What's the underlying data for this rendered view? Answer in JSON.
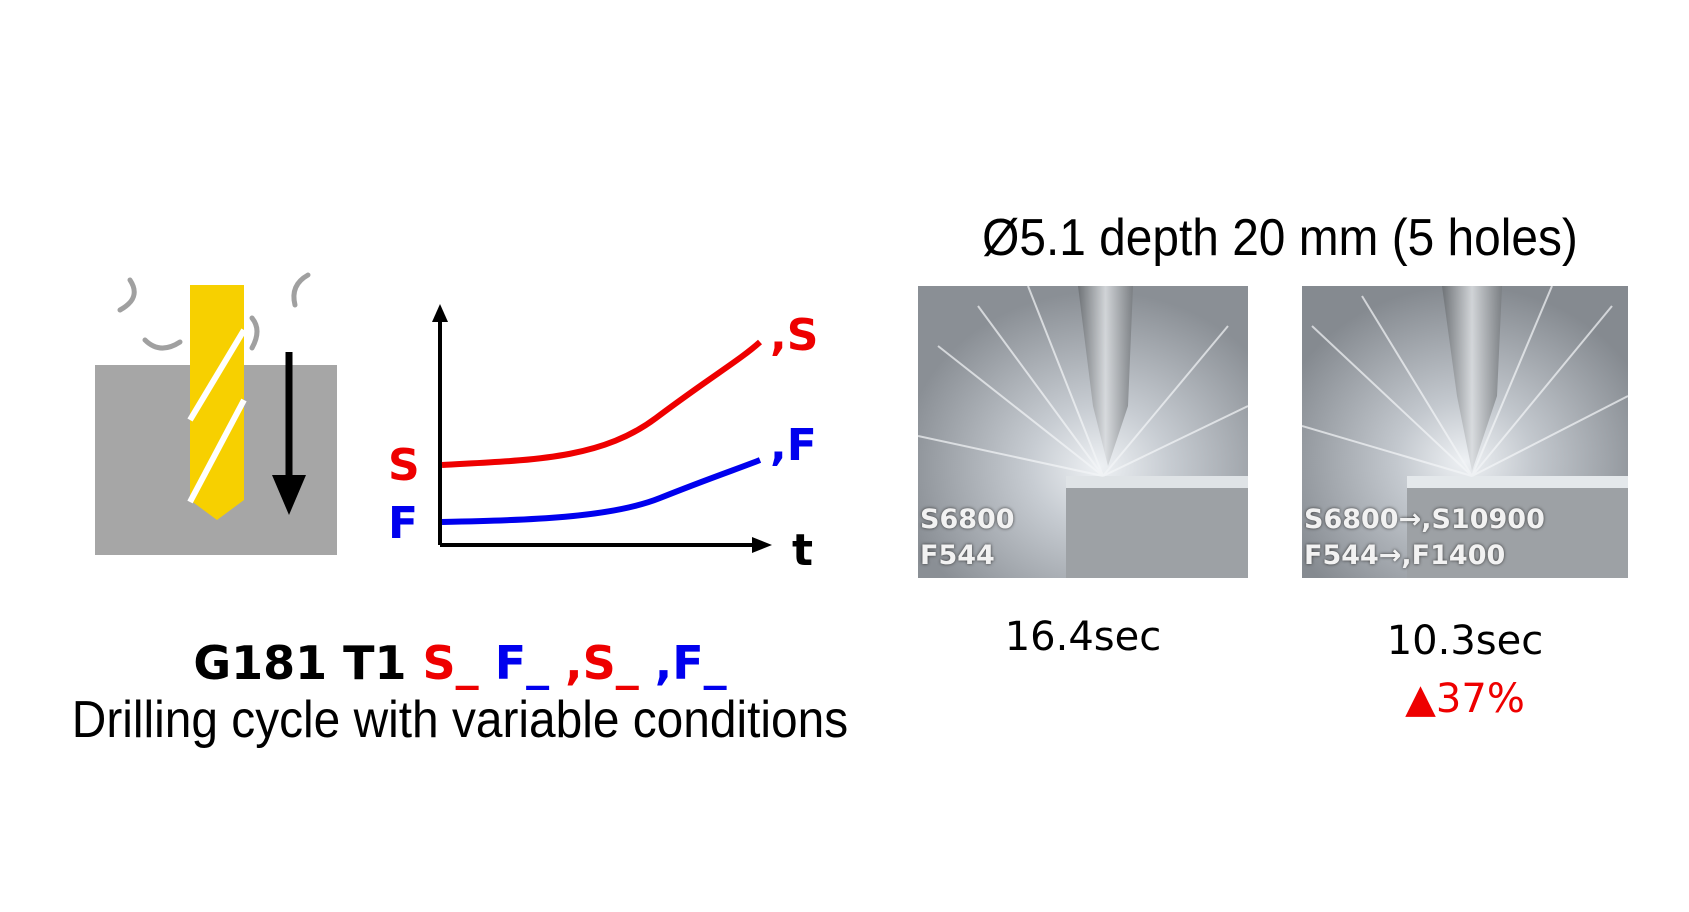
{
  "diagram": {
    "graph": {
      "s_label": "S",
      "f_label": "F",
      "s_end_label": ",S",
      "f_end_label": ",F",
      "t_axis_label": "t",
      "s_color": "#ee0000",
      "f_color": "#0000ee"
    },
    "command": {
      "prefix": "G181 T1 ",
      "s_param": "S_ ",
      "f_param": "F_ ",
      "s2_param": ",S_ ",
      "f2_param": ",F_"
    },
    "description": "Drilling cycle with variable conditions",
    "drill_colors": {
      "drill": "#f7d000",
      "workpiece": "#a6a6a6",
      "chips": "#a0a0a0"
    }
  },
  "comparison": {
    "title": "Ø5.1 depth 20 mm (5 holes)",
    "before": {
      "line1": "S6800",
      "line2": "F544",
      "time": "16.4sec"
    },
    "after": {
      "line1": "S6800→,S10900",
      "line2": "F544→,F1400",
      "time": "10.3sec",
      "improvement": "▲37%"
    }
  }
}
